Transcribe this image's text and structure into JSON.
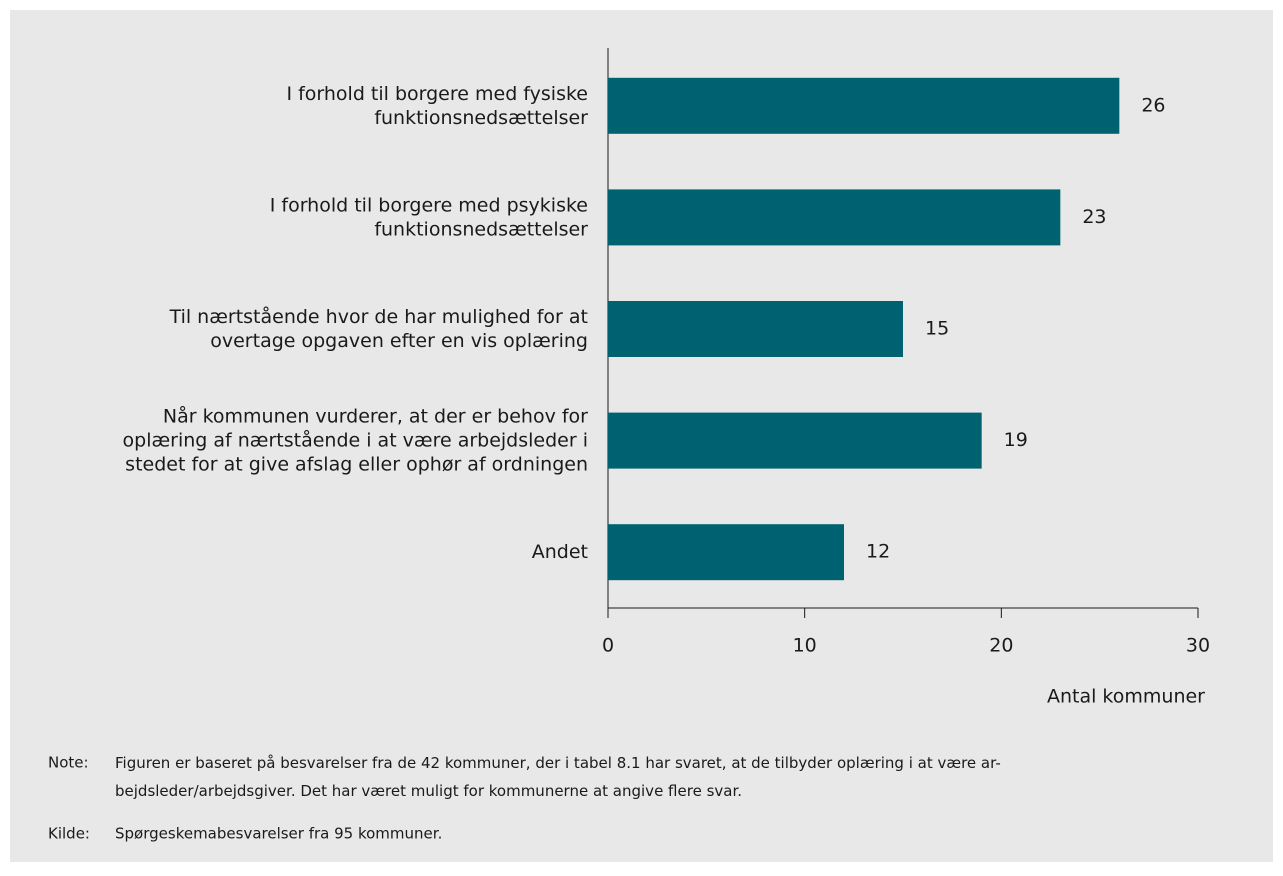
{
  "chart_data": {
    "type": "barh",
    "categories": [
      "I forhold til borgere med fysiske\nfunktionsnedsættelser",
      "I forhold til borgere med psykiske\nfunktionsnedsættelser",
      "Til nærtstående hvor de har mulighed for at\novertage opgaven efter en vis oplæring",
      "Når kommunen vurderer, at der er behov for\noplæring af nærtstående i at være arbejdsleder i\nstedet for at give afslag eller ophør af ordningen",
      "Andet"
    ],
    "values": [
      26,
      23,
      15,
      19,
      12
    ],
    "color": "#006170",
    "xlim": [
      0,
      30
    ],
    "xticks": [
      0,
      10,
      20,
      30
    ],
    "xlabel": "Antal kommuner",
    "note_label": "Note:",
    "note": "Figuren er baseret på besvarelser fra de 42 kommuner, der i tabel 8.1 har svaret, at de tilbyder oplæring i at være ar-\nbejdsleder/arbejdsgiver. Det har været muligt for kommunerne at angive flere svar.",
    "source_label": "Kilde:",
    "source": "Spørgeskemabesvarelser fra 95 kommuner."
  }
}
